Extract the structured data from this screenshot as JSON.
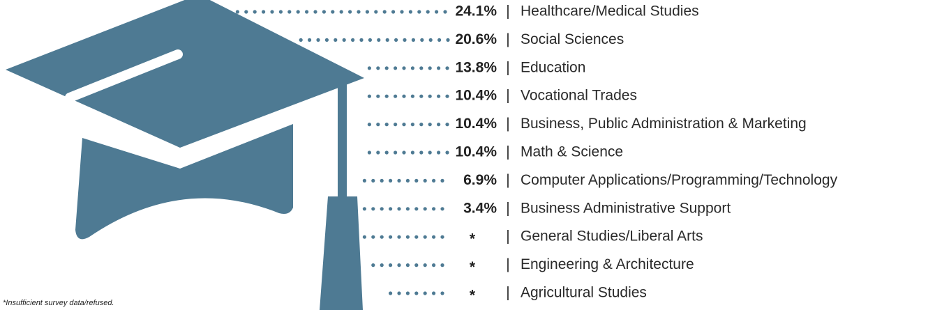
{
  "items": [
    {
      "value": "24.1%",
      "label": "Healthcare/Medical Studies"
    },
    {
      "value": "20.6%",
      "label": "Social Sciences"
    },
    {
      "value": "13.8%",
      "label": "Education"
    },
    {
      "value": "10.4%",
      "label": "Vocational Trades"
    },
    {
      "value": "10.4%",
      "label": "Business, Public Administration & Marketing"
    },
    {
      "value": "10.4%",
      "label": "Math & Science"
    },
    {
      "value": "6.9%",
      "label": "Computer Applications/Programming/Technology"
    },
    {
      "value": "3.4%",
      "label": "Business Administrative Support"
    },
    {
      "value": "*",
      "label": "General Studies/Liberal Arts"
    },
    {
      "value": "*",
      "label": "Engineering & Architecture"
    },
    {
      "value": "*",
      "label": "Agricultural Studies"
    }
  ],
  "separator": "|",
  "footnote": "*Insufficient survey data/refused."
}
